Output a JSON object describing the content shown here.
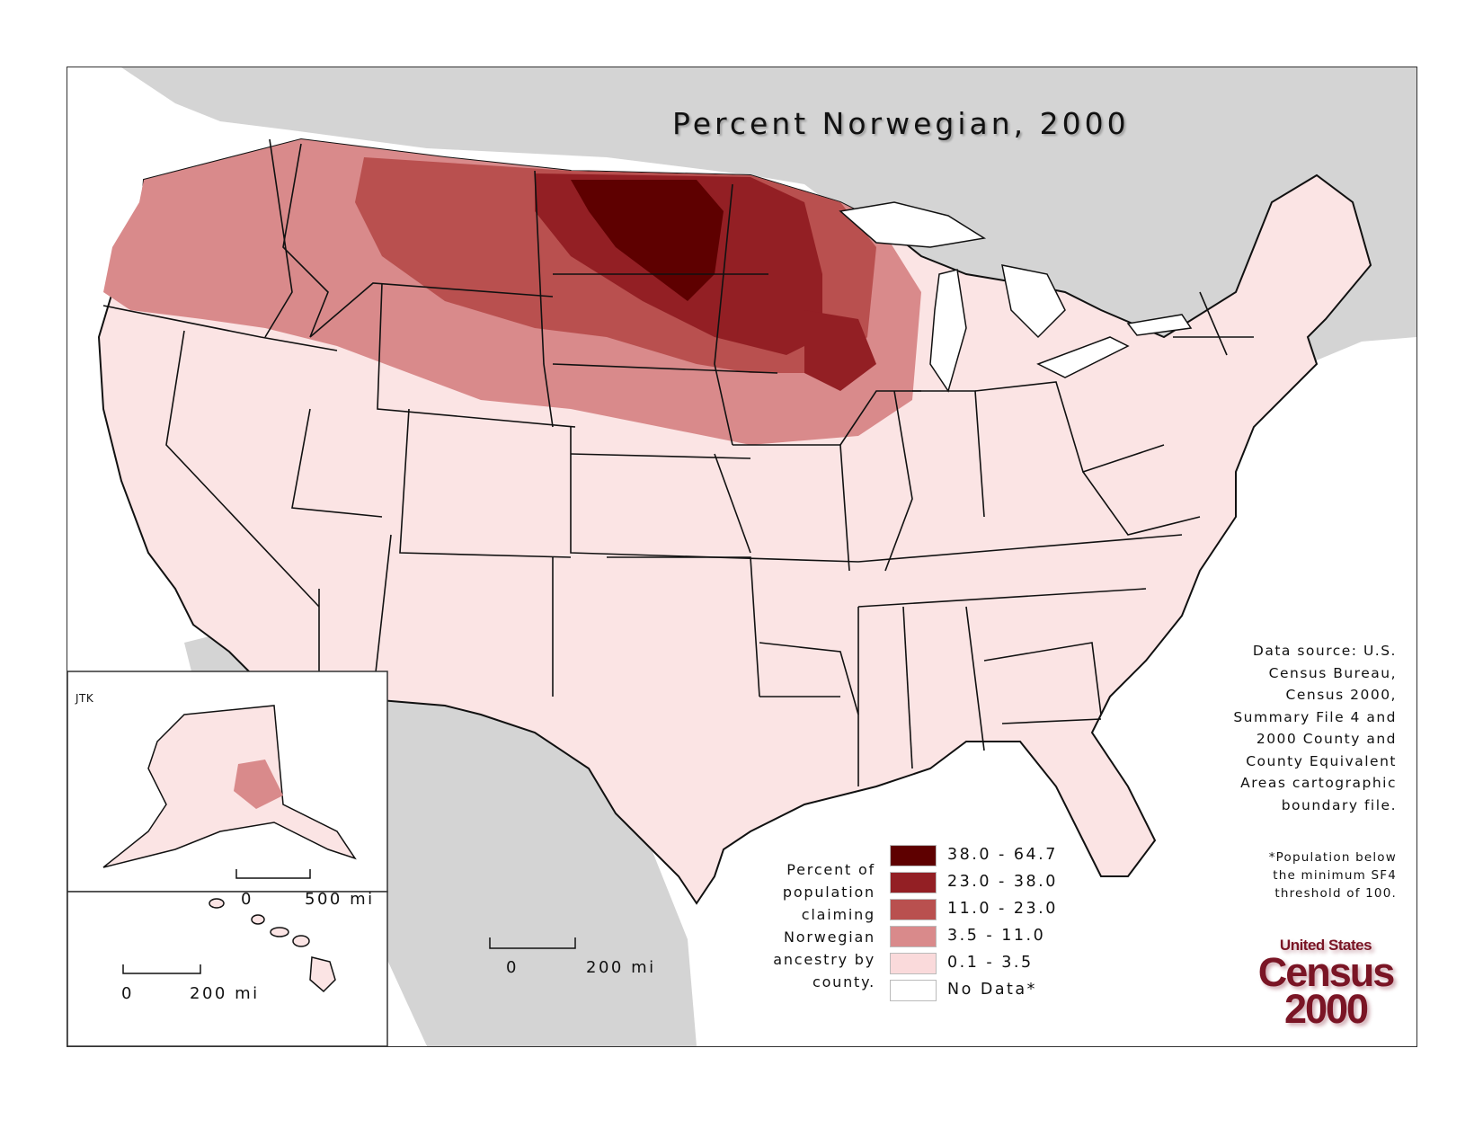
{
  "title": "Percent Norwegian, 2000",
  "source_lines": [
    "Data source:  U.S.",
    "Census Bureau,",
    "Census 2000,",
    "Summary File 4 and",
    "2000 County and",
    "County Equivalent",
    "Areas cartographic",
    "boundary file."
  ],
  "note_lines": [
    "*Population below",
    "the minimum SF4",
    "threshold of 100."
  ],
  "legend": {
    "description_lines": [
      "Percent of",
      "population",
      "claiming",
      "Norwegian",
      "ancestry by",
      "county."
    ],
    "classes": [
      {
        "label": "38.0 - 64.7",
        "color": "#5e0000"
      },
      {
        "label": "23.0 - 38.0",
        "color": "#931f24"
      },
      {
        "label": "11.0 - 23.0",
        "color": "#b9504f"
      },
      {
        "label": "3.5 - 11.0",
        "color": "#d98a8b"
      },
      {
        "label": "0.1 - 3.5",
        "color": "#fadadb"
      },
      {
        "label": "No Data*",
        "color": "#ffffff"
      }
    ]
  },
  "credit": "JTK",
  "scale_bars": {
    "main": {
      "start": "0",
      "end": "200 mi"
    },
    "alaska": {
      "start": "0",
      "end": "500 mi"
    },
    "hawaii": {
      "start": "0",
      "end": "200 mi"
    }
  },
  "logo": {
    "line1": "United States",
    "line2": "Census",
    "line3": "2000"
  },
  "colors": {
    "land_background": "#d4d4d4",
    "water": "#ffffff",
    "borders": "#111111"
  }
}
